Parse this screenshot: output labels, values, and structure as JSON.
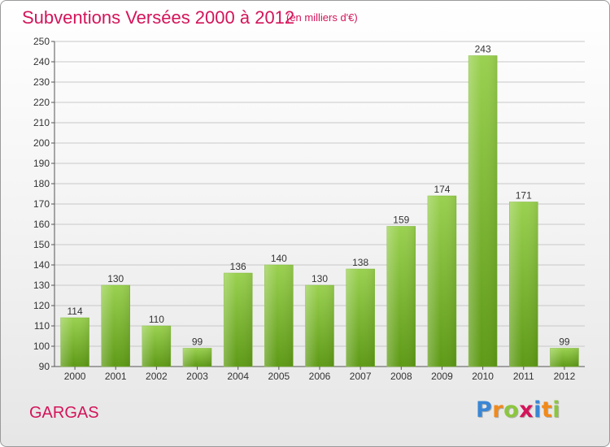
{
  "title": "Subventions Versées 2000 à 2012",
  "subtitle": "(en milliers d'€)",
  "city": "GARGAS",
  "logo": {
    "text": "Proxiti",
    "letters": [
      {
        "ch": "P",
        "color": "#3a86d4"
      },
      {
        "ch": "r",
        "color": "#f08a1c"
      },
      {
        "ch": "o",
        "color": "#8cc63f"
      },
      {
        "ch": "x",
        "color": "#d4145a"
      },
      {
        "ch": "i",
        "color": "#3a86d4"
      },
      {
        "ch": "t",
        "color": "#f08a1c"
      },
      {
        "ch": "i",
        "color": "#8cc63f"
      }
    ]
  },
  "colors": {
    "accent": "#d4145a",
    "bar_light": "#9ad150",
    "bar_dark": "#5e9a16",
    "grid": "#c8c8c8",
    "axis": "#555555"
  },
  "chart_data": {
    "type": "bar",
    "categories": [
      "2000",
      "2001",
      "2002",
      "2003",
      "2004",
      "2005",
      "2006",
      "2007",
      "2008",
      "2009",
      "2010",
      "2011",
      "2012"
    ],
    "values": [
      114,
      130,
      110,
      99,
      136,
      140,
      130,
      138,
      159,
      174,
      243,
      171,
      99
    ],
    "ylim": [
      90,
      250
    ],
    "ytick_step": 10,
    "grid": true,
    "legend": "none"
  }
}
